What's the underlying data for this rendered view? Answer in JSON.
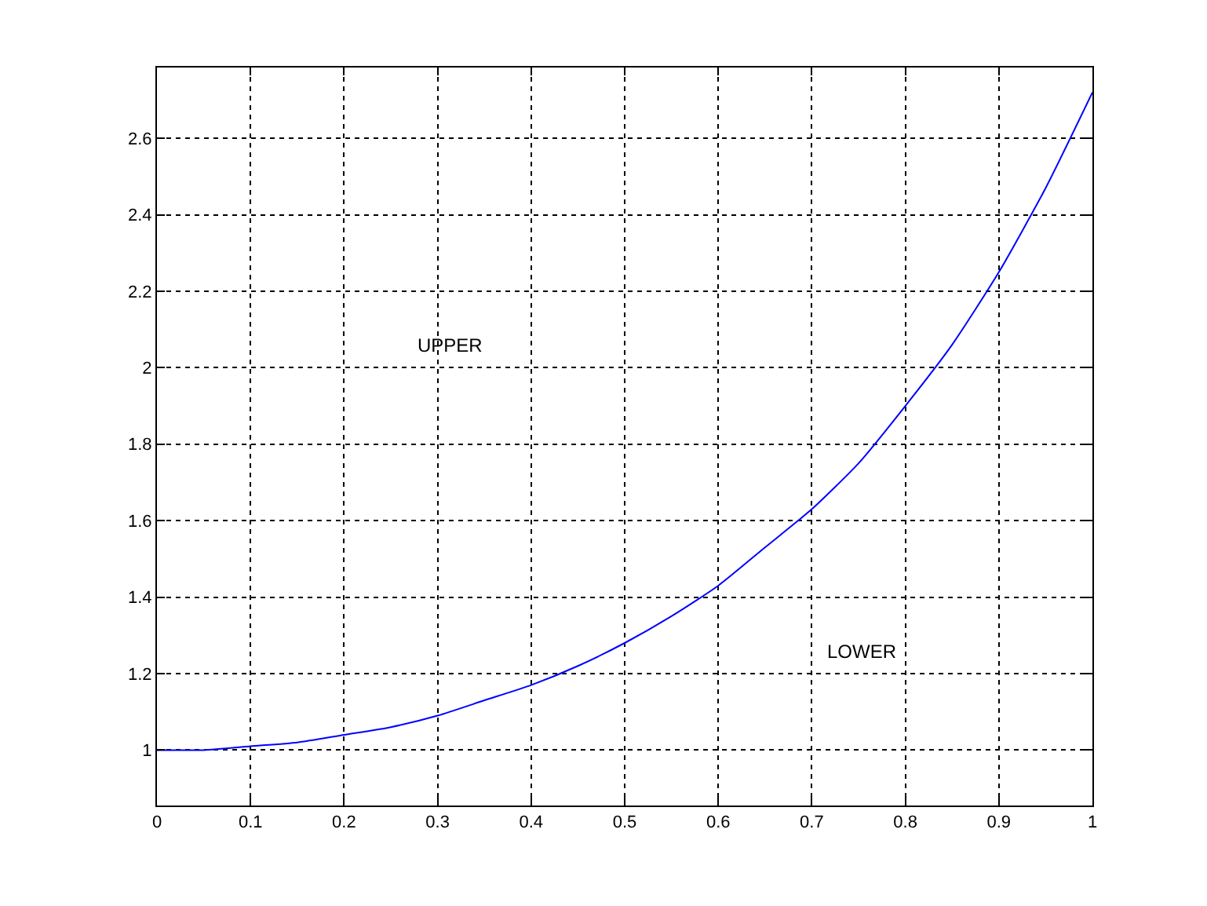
{
  "chart_data": {
    "type": "line",
    "x": [
      0,
      0.05,
      0.1,
      0.15,
      0.2,
      0.25,
      0.3,
      0.35,
      0.4,
      0.45,
      0.5,
      0.55,
      0.6,
      0.65,
      0.7,
      0.75,
      0.8,
      0.85,
      0.9,
      0.95,
      1
    ],
    "series": [
      {
        "color": "#0000ff",
        "values": [
          1.0,
          1.0,
          1.01,
          1.02,
          1.04,
          1.06,
          1.09,
          1.13,
          1.17,
          1.22,
          1.28,
          1.35,
          1.43,
          1.53,
          1.63,
          1.75,
          1.9,
          2.06,
          2.25,
          2.47,
          2.72
        ]
      }
    ],
    "xlim": [
      0,
      1
    ],
    "ylim": [
      0.855,
      2.785
    ],
    "xticks": [
      0,
      0.1,
      0.2,
      0.3,
      0.4,
      0.5,
      0.6,
      0.7,
      0.8,
      0.9,
      1
    ],
    "yticks": [
      1,
      1.2,
      1.4,
      1.6,
      1.8,
      2,
      2.2,
      2.4,
      2.6
    ],
    "grid": true,
    "line_style": "solid",
    "annotations": [
      "UPPER",
      "LOWER"
    ]
  }
}
